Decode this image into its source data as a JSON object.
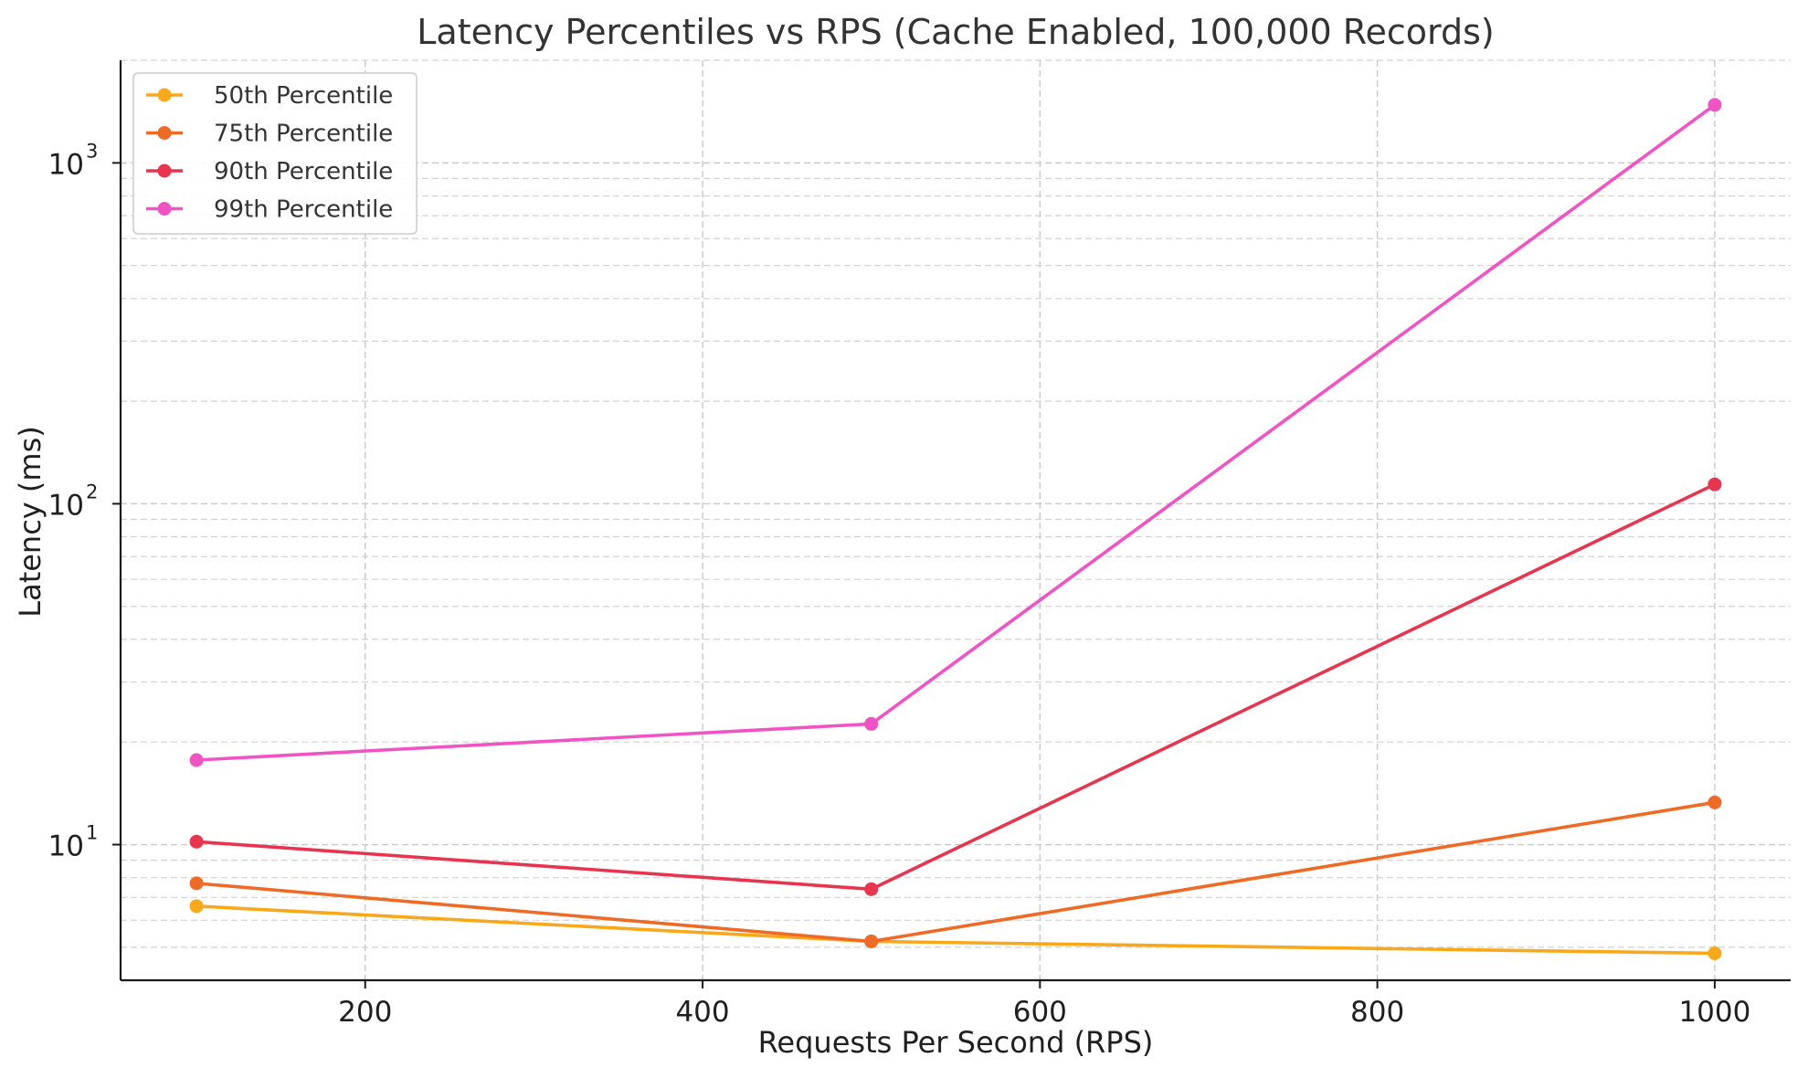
{
  "chart_data": {
    "type": "line",
    "title": "Latency Percentiles vs RPS (Cache Enabled, 100,000 Records)",
    "xlabel": "Requests Per Second (RPS)",
    "ylabel": "Latency (ms)",
    "x": [
      100,
      500,
      1000
    ],
    "xlim": [
      55,
      1045
    ],
    "ylim": [
      4.0,
      2000
    ],
    "yscale": "log",
    "grid": true,
    "legend_position": "top-left",
    "xticks": [
      {
        "value": 200,
        "label": "200"
      },
      {
        "value": 400,
        "label": "400"
      },
      {
        "value": 600,
        "label": "600"
      },
      {
        "value": 800,
        "label": "800"
      },
      {
        "value": 1000,
        "label": "1000"
      }
    ],
    "yticks": [
      {
        "value": 10,
        "base": "10",
        "exp": "1"
      },
      {
        "value": 100,
        "base": "10",
        "exp": "2"
      },
      {
        "value": 1000,
        "base": "10",
        "exp": "3"
      }
    ],
    "series": [
      {
        "name": "50th Percentile",
        "color": "#F9A81A",
        "values": [
          6.6,
          5.2,
          4.8
        ]
      },
      {
        "name": "75th Percentile",
        "color": "#EE6A25",
        "values": [
          7.7,
          5.2,
          13.3
        ]
      },
      {
        "name": "90th Percentile",
        "color": "#E8344E",
        "values": [
          10.2,
          7.4,
          114
        ]
      },
      {
        "name": "99th Percentile",
        "color": "#F152C4",
        "values": [
          17.7,
          22.6,
          1480
        ]
      }
    ]
  }
}
